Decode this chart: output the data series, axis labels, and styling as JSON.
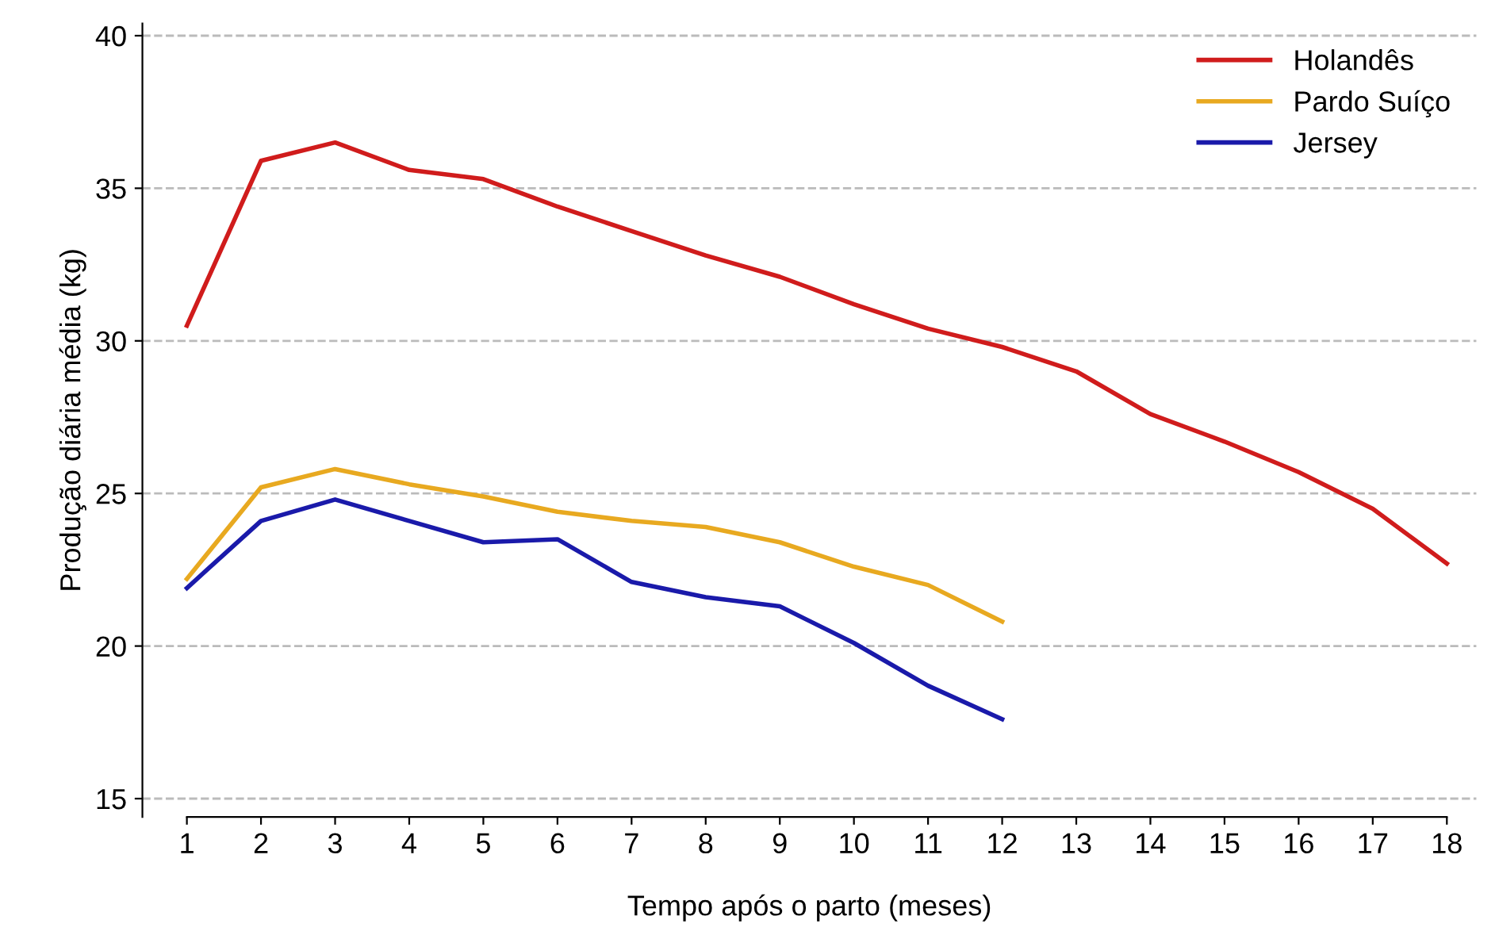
{
  "chart_data": {
    "type": "line",
    "xlabel": "Tempo após o parto (meses)",
    "ylabel": "Produção diária média (kg)",
    "x": [
      1,
      2,
      3,
      4,
      5,
      6,
      7,
      8,
      9,
      10,
      11,
      12,
      13,
      14,
      15,
      16,
      17,
      18
    ],
    "series": [
      {
        "name": "Holandês",
        "color": "#d01c1c",
        "values": [
          30.5,
          35.9,
          36.5,
          35.6,
          35.3,
          34.4,
          33.6,
          32.8,
          32.1,
          31.2,
          30.4,
          29.8,
          29.0,
          27.6,
          26.7,
          25.7,
          24.5,
          22.7
        ]
      },
      {
        "name": "Pardo Suíço",
        "color": "#e8a920",
        "x": [
          1,
          2,
          3,
          4,
          5,
          6,
          7,
          8,
          9,
          10,
          11,
          12
        ],
        "values": [
          22.2,
          25.2,
          25.8,
          25.3,
          24.9,
          24.4,
          24.1,
          23.9,
          23.4,
          22.6,
          22.0,
          20.8
        ]
      },
      {
        "name": "Jersey",
        "color": "#1a1aaa",
        "x": [
          1,
          2,
          3,
          4,
          5,
          6,
          7,
          8,
          9,
          10,
          11,
          12
        ],
        "values": [
          21.9,
          24.1,
          24.8,
          24.1,
          23.4,
          23.5,
          22.1,
          21.6,
          21.3,
          20.1,
          18.7,
          17.6
        ]
      }
    ],
    "xlim": [
      0.4,
      18.4
    ],
    "xticks": [
      1,
      2,
      3,
      4,
      5,
      6,
      7,
      8,
      9,
      10,
      11,
      12,
      13,
      14,
      15,
      16,
      17,
      18
    ],
    "ylim": [
      14.4,
      40.4
    ],
    "yticks": [
      15,
      20,
      25,
      30,
      35,
      40
    ],
    "grid": "y",
    "legend": "top right",
    "marker": "none",
    "line_style": "solid"
  }
}
